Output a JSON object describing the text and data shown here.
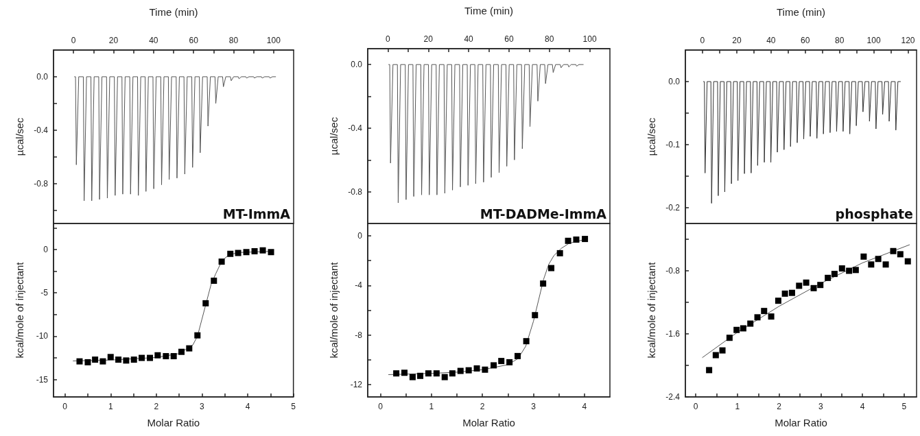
{
  "chart_data": [
    {
      "type": "line",
      "xlabel": "Time (min)",
      "ylabel": "µcal/sec",
      "xlim": [
        -10,
        110
      ],
      "ylim": [
        -1.1,
        0.2
      ],
      "xticks": [
        0,
        {
          "value": 10,
          "label": null
        },
        20,
        {
          "value": 30,
          "label": null
        },
        40,
        {
          "value": 50,
          "label": null
        },
        60,
        {
          "value": 70,
          "label": null
        },
        80,
        {
          "value": 90,
          "label": null
        },
        100
      ],
      "yticks": [
        {
          "value": 0,
          "label": "0.0"
        },
        {
          "value": -0.2,
          "label": null
        },
        -0.4,
        {
          "value": -0.6,
          "label": null
        },
        -0.8,
        {
          "value": -1,
          "label": null
        }
      ],
      "annotations": [
        "MT-ImmA"
      ],
      "series": [
        {
          "color": "#555555",
          "x": [
            0.5,
            1,
            1.4,
            2.6,
            4.9,
            5.3,
            6.5,
            8.7,
            9.1,
            10.3,
            12.6,
            13,
            14.2,
            16.5,
            16.9,
            18.1,
            20.4,
            20.8,
            22,
            24.2,
            24.6,
            25.8,
            28.1,
            28.5,
            29.7,
            32,
            32.4,
            33.6,
            35.8,
            36.2,
            37.4,
            39.7,
            40.1,
            41.3,
            43.6,
            44,
            45.2,
            47.4,
            47.8,
            49,
            51.3,
            51.7,
            52.9,
            55.2,
            55.6,
            56.8,
            59.1,
            59.5,
            60.7,
            62.9,
            63.3,
            64.5,
            66.8,
            67.2,
            68.4,
            70.7,
            71.1,
            72.3,
            74.5,
            74.9,
            76.1,
            78.4,
            78.8,
            80,
            82.3,
            82.7,
            83.9,
            86.1,
            86.5,
            87.7,
            90,
            90.4,
            91.6,
            93.9,
            94.3,
            95.5,
            97.8,
            98.2,
            99.4,
            101
          ],
          "values": [
            0,
            0,
            -0.66,
            0,
            0,
            -0.93,
            0,
            0,
            -0.93,
            0,
            0,
            -0.92,
            0,
            0,
            -0.91,
            0,
            0,
            -0.89,
            0,
            0,
            -0.88,
            0,
            0,
            -0.88,
            0,
            0,
            -0.89,
            0,
            0,
            -0.86,
            0,
            0,
            -0.84,
            0,
            0,
            -0.81,
            0,
            0,
            -0.77,
            0,
            0,
            -0.76,
            0,
            0,
            -0.73,
            0,
            0,
            -0.68,
            0,
            0,
            -0.57,
            0,
            0,
            -0.37,
            0,
            0,
            -0.2,
            0,
            0,
            -0.075,
            0,
            0,
            -0.03,
            0,
            0,
            -0.015,
            0,
            0,
            -0.01,
            0,
            0,
            -0.01,
            0,
            0,
            -0.01,
            0,
            0,
            -0.01,
            0,
            0
          ]
        }
      ]
    },
    {
      "type": "line",
      "xlabel": "Time (min)",
      "ylabel": "µcal/sec",
      "xlim": [
        -10,
        110
      ],
      "ylim": [
        -1,
        0.1
      ],
      "xticks": [
        0,
        {
          "value": 10,
          "label": null
        },
        20,
        {
          "value": 30,
          "label": null
        },
        40,
        {
          "value": 50,
          "label": null
        },
        60,
        {
          "value": 70,
          "label": null
        },
        80,
        {
          "value": 90,
          "label": null
        },
        100
      ],
      "yticks": [
        {
          "value": 0,
          "label": "0.0"
        },
        {
          "value": -0.2,
          "label": null
        },
        -0.4,
        {
          "value": -0.6,
          "label": null
        },
        -0.8
      ],
      "annotations": [
        "MT-DADMe-ImmA"
      ],
      "series": [
        {
          "color": "#555555",
          "x": [
            0.4,
            0.9,
            1.3,
            2.5,
            4.7,
            5.1,
            6.3,
            8.6,
            9,
            10.2,
            12.4,
            12.8,
            14,
            16.3,
            16.7,
            17.9,
            20.1,
            20.5,
            21.7,
            23.9,
            24.3,
            25.5,
            27.8,
            28.2,
            29.4,
            31.6,
            32,
            33.2,
            35.5,
            35.9,
            37.1,
            39.3,
            39.7,
            40.9,
            43.1,
            43.5,
            44.7,
            47,
            47.4,
            48.6,
            50.8,
            51.2,
            52.4,
            54.7,
            55.1,
            56.3,
            58.5,
            58.9,
            60.1,
            62.3,
            62.7,
            63.9,
            66.2,
            66.6,
            67.8,
            70,
            70.4,
            71.6,
            73.9,
            74.3,
            75.5,
            77.7,
            78.1,
            79.3,
            81.5,
            81.9,
            83.1,
            85.4,
            85.8,
            87,
            89.2,
            89.6,
            90.8,
            93.1,
            93.5,
            94.7,
            96.8
          ],
          "values": [
            0,
            0,
            -0.62,
            0,
            0,
            -0.87,
            0,
            0,
            -0.85,
            0,
            0,
            -0.83,
            0,
            0,
            -0.82,
            0,
            0,
            -0.82,
            0,
            0,
            -0.82,
            0,
            0,
            -0.81,
            0,
            0,
            -0.79,
            0,
            0,
            -0.77,
            0,
            0,
            -0.76,
            0,
            0,
            -0.75,
            0,
            0,
            -0.74,
            0,
            0,
            -0.71,
            0,
            0,
            -0.68,
            0,
            0,
            -0.64,
            0,
            0,
            -0.6,
            0,
            0,
            -0.53,
            0,
            0,
            -0.39,
            0,
            0,
            -0.23,
            0,
            0,
            -0.12,
            0,
            0,
            -0.05,
            0,
            0,
            -0.02,
            0,
            0,
            -0.015,
            0,
            0,
            -0.01,
            0,
            0
          ]
        }
      ]
    },
    {
      "type": "line",
      "xlabel": "Time (min)",
      "ylabel": "µcal/sec",
      "xlim": [
        -10,
        125
      ],
      "ylim": [
        -0.225,
        0.05
      ],
      "xticks": [
        0,
        {
          "value": 10,
          "label": null
        },
        20,
        {
          "value": 30,
          "label": null
        },
        40,
        {
          "value": 50,
          "label": null
        },
        60,
        {
          "value": 70,
          "label": null
        },
        80,
        {
          "value": 90,
          "label": null
        },
        100,
        {
          "value": 110,
          "label": null
        },
        120
      ],
      "yticks": [
        {
          "value": 0,
          "label": "0.0"
        },
        {
          "value": -0.05,
          "label": null
        },
        -0.1,
        {
          "value": -0.15,
          "label": null
        },
        -0.2
      ],
      "annotations": [
        "phosphate"
      ],
      "series": [
        {
          "color": "#333333",
          "x": [
            0.6,
            1.1,
            1.5,
            2.7,
            4.9,
            5.3,
            6.5,
            8.8,
            9.2,
            10.4,
            12.6,
            13,
            14.2,
            16.5,
            16.9,
            18.1,
            20.3,
            20.7,
            21.9,
            24.1,
            24.5,
            25.7,
            28,
            28.4,
            29.6,
            31.8,
            32.2,
            33.4,
            35.7,
            36.1,
            37.3,
            39.5,
            39.9,
            41.1,
            43.3,
            43.7,
            44.9,
            47.2,
            47.6,
            48.8,
            51,
            51.4,
            52.6,
            54.9,
            55.3,
            56.5,
            58.7,
            59.1,
            60.3,
            62.5,
            62.9,
            64.1,
            66.4,
            66.8,
            68,
            70.2,
            70.6,
            71.8,
            74.1,
            74.5,
            75.7,
            77.9,
            78.3,
            79.5,
            81.7,
            82.1,
            83.3,
            85.6,
            86,
            87.2,
            89.4,
            89.8,
            91,
            93.3,
            93.7,
            94.9,
            97.1,
            97.5,
            98.7,
            100.9,
            101.3,
            102.5,
            104.8,
            105.2,
            106.4,
            108.6,
            109,
            110.2,
            112.5,
            112.9,
            114.1,
            115.6
          ],
          "values": [
            0,
            0,
            -0.145,
            0,
            0,
            -0.193,
            0,
            0,
            -0.181,
            0,
            0,
            -0.175,
            0,
            0,
            -0.162,
            0,
            0,
            -0.157,
            0,
            0,
            -0.146,
            0,
            0,
            -0.145,
            0,
            0,
            -0.133,
            0,
            0,
            -0.128,
            0,
            0,
            -0.128,
            0,
            0,
            -0.112,
            0,
            0,
            -0.108,
            0,
            0,
            -0.103,
            0,
            0,
            -0.097,
            0,
            0,
            -0.091,
            0,
            0,
            -0.087,
            0,
            0,
            -0.09,
            0,
            0,
            -0.083,
            0,
            0,
            -0.081,
            0,
            0,
            -0.079,
            0,
            0,
            -0.079,
            0,
            0,
            -0.083,
            0,
            0,
            -0.07,
            0,
            0,
            -0.048,
            0,
            0,
            -0.063,
            0,
            0,
            -0.075,
            0,
            0,
            -0.052,
            0,
            0,
            -0.063,
            0,
            0,
            -0.077,
            0,
            0
          ]
        }
      ]
    },
    {
      "type": "scatter",
      "xlabel": "Molar Ratio",
      "ylabel": "kcal/mole of injectant",
      "xlim": [
        -0.25,
        5
      ],
      "ylim": [
        -17,
        3
      ],
      "xticks": [
        0,
        {
          "value": 0.5,
          "label": null
        },
        1,
        {
          "value": 1.5,
          "label": null
        },
        2,
        {
          "value": 2.5,
          "label": null
        },
        3,
        {
          "value": 3.5,
          "label": null
        },
        4,
        {
          "value": 4.5,
          "label": null
        },
        5
      ],
      "yticks": [
        {
          "value": 2.5,
          "label": null
        },
        0,
        {
          "value": -2.5,
          "label": null
        },
        -5,
        {
          "value": -7.5,
          "label": null
        },
        -10,
        {
          "value": -12.5,
          "label": null
        },
        -15
      ],
      "series": [
        {
          "color": "#000000",
          "marker": "square",
          "x": [
            0.32,
            0.5,
            0.66,
            0.83,
            1,
            1.17,
            1.34,
            1.51,
            1.68,
            1.86,
            2.03,
            2.21,
            2.38,
            2.55,
            2.72,
            2.9,
            3.08,
            3.26,
            3.43,
            3.62,
            3.79,
            3.97,
            4.15,
            4.33,
            4.51
          ],
          "values": [
            -12.9,
            -13,
            -12.7,
            -12.9,
            -12.4,
            -12.7,
            -12.8,
            -12.7,
            -12.5,
            -12.5,
            -12.2,
            -12.3,
            -12.3,
            -11.8,
            -11.4,
            -9.9,
            -6.2,
            -3.6,
            -1.4,
            -0.5,
            -0.4,
            -0.3,
            -0.2,
            -0.1,
            -0.3
          ]
        },
        {
          "type": "line",
          "color": "#555555",
          "x": [
            0.18,
            1,
            2,
            2.5,
            2.8,
            2.9,
            3,
            3.1,
            3.2,
            3.3,
            3.4,
            3.5,
            3.6,
            3.8,
            4.55
          ],
          "values": [
            -12.85,
            -12.75,
            -12.45,
            -12,
            -11,
            -10,
            -8,
            -6,
            -4,
            -2.8,
            -1.7,
            -1,
            -0.6,
            -0.35,
            -0.2
          ]
        }
      ]
    },
    {
      "type": "scatter",
      "xlabel": "Molar Ratio",
      "ylabel": "kcal/mole of injectant",
      "xlim": [
        -0.25,
        4.5
      ],
      "ylim": [
        -13,
        1
      ],
      "xticks": [
        0,
        {
          "value": 0.5,
          "label": null
        },
        1,
        {
          "value": 1.5,
          "label": null
        },
        2,
        {
          "value": 2.5,
          "label": null
        },
        3,
        {
          "value": 3.5,
          "label": null
        },
        4
      ],
      "yticks": [
        0,
        {
          "value": -2,
          "label": null
        },
        -4,
        {
          "value": -6,
          "label": null
        },
        -8,
        {
          "value": -10,
          "label": null
        },
        -12
      ],
      "series": [
        {
          "color": "#000000",
          "marker": "square",
          "x": [
            0.31,
            0.47,
            0.63,
            0.78,
            0.94,
            1.1,
            1.26,
            1.41,
            1.57,
            1.73,
            1.89,
            2.05,
            2.22,
            2.37,
            2.53,
            2.69,
            2.86,
            3.03,
            3.19,
            3.35,
            3.52,
            3.68,
            3.84,
            4.01
          ],
          "values": [
            -11.1,
            -11.05,
            -11.4,
            -11.3,
            -11.1,
            -11.1,
            -11.4,
            -11.1,
            -10.9,
            -10.85,
            -10.7,
            -10.8,
            -10.45,
            -10.1,
            -10.2,
            -9.7,
            -8.5,
            -6.4,
            -3.85,
            -2.6,
            -1.4,
            -0.4,
            -0.3,
            -0.25
          ]
        },
        {
          "type": "line",
          "color": "#555555",
          "x": [
            0.16,
            1,
            1.5,
            2,
            2.5,
            2.7,
            2.85,
            3,
            3.1,
            3.2,
            3.3,
            3.4,
            3.55,
            3.7,
            4.05
          ],
          "values": [
            -11.2,
            -11.1,
            -11,
            -10.8,
            -10.4,
            -9.9,
            -8.9,
            -6.9,
            -5.2,
            -3.5,
            -2.3,
            -1.6,
            -1,
            -0.6,
            -0.25
          ]
        }
      ]
    },
    {
      "type": "scatter",
      "xlabel": "Molar Ratio",
      "ylabel": "kcal/mole of injectant",
      "xlim": [
        -0.25,
        5.3
      ],
      "ylim": [
        -2.4,
        -0.2
      ],
      "xticks": [
        0,
        {
          "value": 0.5,
          "label": null
        },
        1,
        {
          "value": 1.5,
          "label": null
        },
        2,
        {
          "value": 2.5,
          "label": null
        },
        3,
        {
          "value": 3.5,
          "label": null
        },
        4,
        {
          "value": 4.5,
          "label": null
        },
        5
      ],
      "yticks": [
        {
          "value": -0.4,
          "label": null
        },
        -0.8,
        {
          "value": -1.2,
          "label": null
        },
        -1.6,
        {
          "value": -2,
          "label": null
        },
        -2.4
      ],
      "series": [
        {
          "color": "#000000",
          "marker": "square",
          "x": [
            0.32,
            0.48,
            0.64,
            0.81,
            0.98,
            1.14,
            1.31,
            1.48,
            1.64,
            1.81,
            1.98,
            2.14,
            2.31,
            2.48,
            2.65,
            2.83,
            2.99,
            3.17,
            3.33,
            3.51,
            3.68,
            3.84,
            4.03,
            4.21,
            4.38,
            4.56,
            4.74,
            4.91,
            5.09
          ],
          "values": [
            -2.06,
            -1.87,
            -1.81,
            -1.65,
            -1.55,
            -1.53,
            -1.47,
            -1.39,
            -1.31,
            -1.38,
            -1.18,
            -1.09,
            -1.08,
            -0.99,
            -0.95,
            -1.02,
            -0.98,
            -0.89,
            -0.84,
            -0.77,
            -0.8,
            -0.79,
            -0.62,
            -0.72,
            -0.65,
            -0.72,
            -0.55,
            -0.59,
            -0.68
          ]
        },
        {
          "type": "line",
          "color": "#555555",
          "x": [
            0.16,
            1,
            2,
            3,
            4,
            5.13
          ],
          "values": [
            -1.9,
            -1.58,
            -1.25,
            -0.96,
            -0.7,
            -0.47
          ]
        }
      ]
    }
  ]
}
